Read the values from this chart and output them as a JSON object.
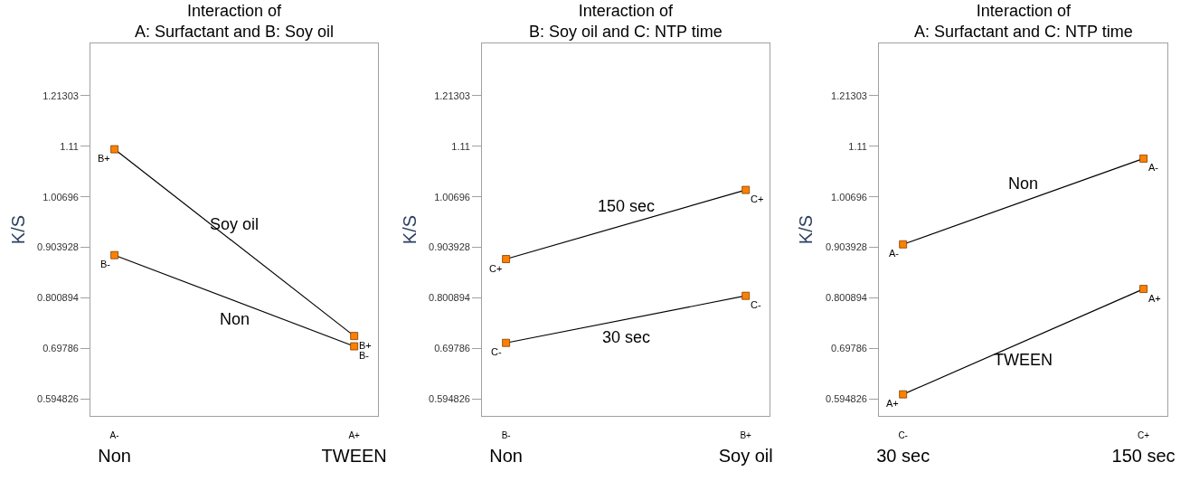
{
  "chart_data": [
    {
      "type": "line",
      "title": "Interaction of\nA: Surfactant and B: Soy oil",
      "ylabel": "K/S",
      "categories": [
        "A-\nNon",
        "A+\nTWEEN"
      ],
      "ylim": [
        0.56,
        1.32
      ],
      "yticks": [
        0.594826,
        0.69786,
        0.800894,
        0.903928,
        1.00696,
        1.11,
        1.21303
      ],
      "marker": "square",
      "series": [
        {
          "name": "Soy oil",
          "color": "#ff8000",
          "values": [
            1.104,
            0.723
          ],
          "value_labels": [
            "B+",
            "B+"
          ]
        },
        {
          "name": "Non",
          "color": "#ff8000",
          "values": [
            0.888,
            0.702
          ],
          "value_labels": [
            "B-",
            "B-"
          ]
        }
      ]
    },
    {
      "type": "line",
      "title": "Interaction of\nB: Soy oil and C: NTP time",
      "ylabel": "K/S",
      "categories": [
        "B-\nNon",
        "B+\nSoy oil"
      ],
      "ylim": [
        0.56,
        1.32
      ],
      "yticks": [
        0.594826,
        0.69786,
        0.800894,
        0.903928,
        1.00696,
        1.11,
        1.21303
      ],
      "marker": "square",
      "series": [
        {
          "name": "150 sec",
          "color": "#ff8000",
          "values": [
            0.88,
            1.021
          ],
          "value_labels": [
            "C+",
            "C+"
          ]
        },
        {
          "name": "30 sec",
          "color": "#ff8000",
          "values": [
            0.709,
            0.805
          ],
          "value_labels": [
            "C-",
            "C-"
          ]
        }
      ]
    },
    {
      "type": "line",
      "title": "Interaction of\nA: Surfactant and C: NTP time",
      "ylabel": "K/S",
      "categories": [
        "C-\n30 sec",
        "C+\n150 sec"
      ],
      "ylim": [
        0.56,
        1.32
      ],
      "yticks": [
        0.594826,
        0.69786,
        0.800894,
        0.903928,
        1.00696,
        1.11,
        1.21303
      ],
      "marker": "square",
      "series": [
        {
          "name": "Non",
          "color": "#ff8000",
          "values": [
            0.91,
            1.085
          ],
          "value_labels": [
            "A-",
            "A-"
          ]
        },
        {
          "name": "TWEEN",
          "color": "#ff8000",
          "values": [
            0.604,
            0.819
          ],
          "value_labels": [
            "A+",
            "A+"
          ]
        }
      ]
    }
  ]
}
